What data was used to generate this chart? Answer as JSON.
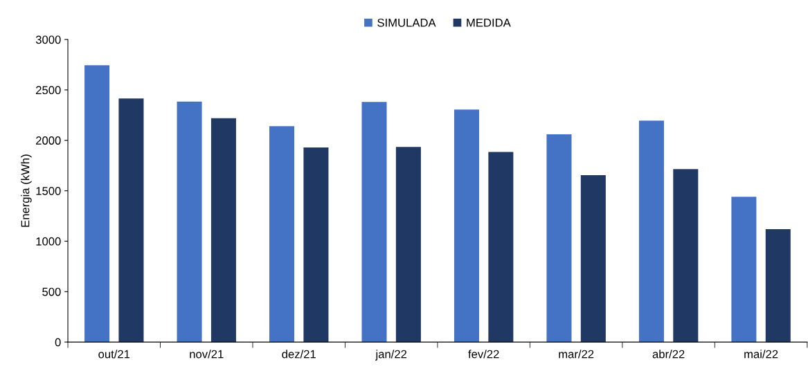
{
  "chart_data": {
    "type": "bar",
    "ylabel": "Energia (kWh)",
    "categories": [
      "out/21",
      "nov/21",
      "dez/21",
      "jan/22",
      "fev/22",
      "mar/22",
      "abr/22",
      "mai/22"
    ],
    "series": [
      {
        "name": "SIMULADA",
        "color": "#4472c4",
        "values": [
          2745,
          2385,
          2140,
          2380,
          2305,
          2060,
          2195,
          1440
        ]
      },
      {
        "name": "MEDIDA",
        "color": "#203864",
        "values": [
          2415,
          2220,
          1930,
          1935,
          1885,
          1655,
          1715,
          1120
        ]
      }
    ],
    "ylim": [
      0,
      3000
    ],
    "yticks": [
      0,
      500,
      1000,
      1500,
      2000,
      2500,
      3000
    ],
    "grid": false,
    "legend": "top"
  }
}
